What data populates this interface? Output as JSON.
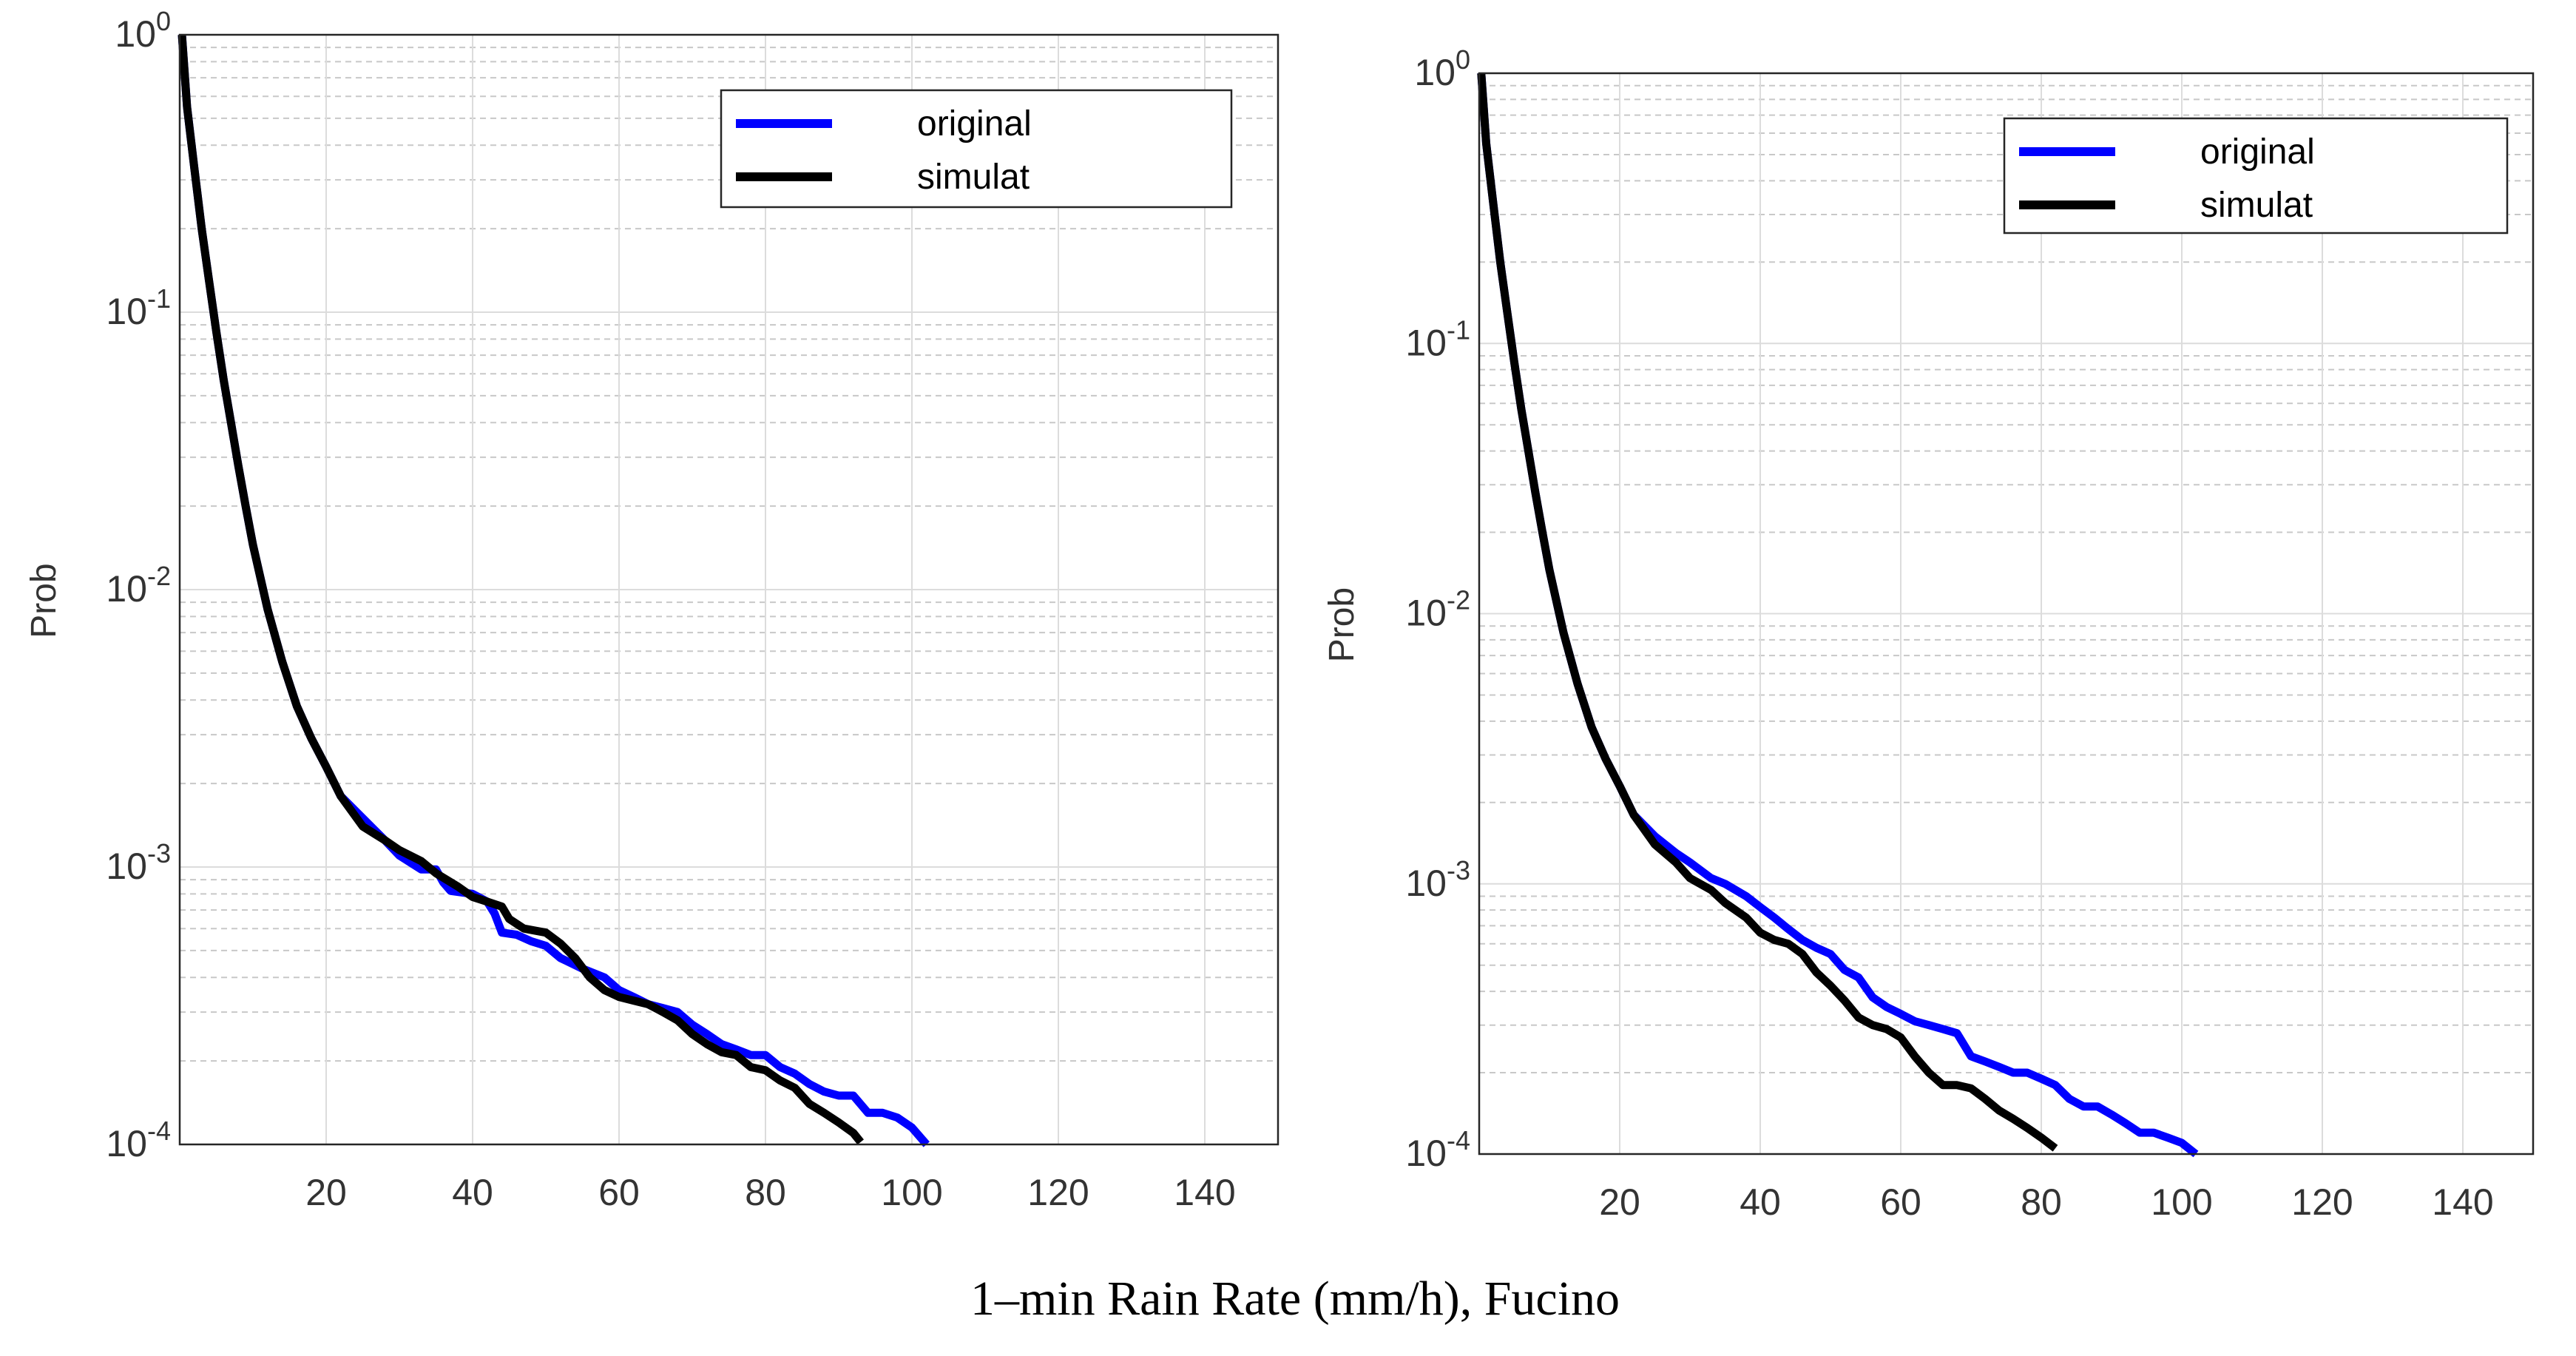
{
  "figure": {
    "caption": "1–min Rain Rate (mm/h), Fucino"
  },
  "chart_data": [
    {
      "type": "line",
      "yscale": "log",
      "ylabel": "Prob",
      "xlabel": "",
      "xlim": [
        0,
        150
      ],
      "ylim": [
        0.0001,
        1
      ],
      "xticks": [
        20,
        40,
        60,
        80,
        100,
        120,
        140
      ],
      "yticks": [
        {
          "value": 1,
          "base": "10",
          "exp": "0"
        },
        {
          "value": 0.1,
          "base": "10",
          "exp": "-1"
        },
        {
          "value": 0.01,
          "base": "10",
          "exp": "-2"
        },
        {
          "value": 0.001,
          "base": "10",
          "exp": "-3"
        },
        {
          "value": 0.0001,
          "base": "10",
          "exp": "-4"
        }
      ],
      "grid": true,
      "legend_position": "top-right",
      "series": [
        {
          "name": "original",
          "color": "#0000ff",
          "x": [
            0.3,
            1,
            2,
            3,
            4,
            5,
            6,
            7,
            8,
            9,
            10,
            12,
            14,
            16,
            18,
            20,
            22,
            25,
            28,
            30,
            33,
            35,
            36,
            37,
            40,
            42,
            43,
            44,
            46,
            48,
            50,
            52,
            55,
            58,
            60,
            62,
            64,
            66,
            68,
            70,
            72,
            74,
            76,
            78,
            80,
            82,
            84,
            86,
            88,
            90,
            92,
            94,
            96,
            98,
            100,
            102
          ],
          "y": [
            1.0,
            0.55,
            0.33,
            0.2,
            0.13,
            0.085,
            0.057,
            0.04,
            0.028,
            0.02,
            0.0145,
            0.0085,
            0.0055,
            0.0038,
            0.0029,
            0.0023,
            0.0018,
            0.0015,
            0.00125,
            0.0011,
            0.00098,
            0.00098,
            0.00088,
            0.00082,
            0.0008,
            0.00075,
            0.00068,
            0.00058,
            0.00057,
            0.00054,
            0.00052,
            0.00047,
            0.00043,
            0.0004,
            0.00036,
            0.00034,
            0.00032,
            0.00031,
            0.0003,
            0.00027,
            0.00025,
            0.00023,
            0.00022,
            0.00021,
            0.00021,
            0.00019,
            0.00018,
            0.000165,
            0.000155,
            0.00015,
            0.00015,
            0.00013,
            0.00013,
            0.000125,
            0.000115,
            0.0001
          ]
        },
        {
          "name": "simulat",
          "color": "#000000",
          "x": [
            0.3,
            1,
            2,
            3,
            4,
            5,
            6,
            7,
            8,
            9,
            10,
            12,
            14,
            16,
            18,
            20,
            22,
            25,
            28,
            30,
            33,
            35,
            38,
            40,
            42,
            44,
            45,
            47,
            50,
            52,
            54,
            56,
            58,
            60,
            62,
            64,
            66,
            68,
            70,
            72,
            74,
            76,
            78,
            80,
            82,
            84,
            86,
            88,
            90,
            92,
            93
          ],
          "y": [
            1.0,
            0.55,
            0.33,
            0.2,
            0.13,
            0.085,
            0.057,
            0.04,
            0.028,
            0.02,
            0.0145,
            0.0085,
            0.0055,
            0.0038,
            0.0029,
            0.0023,
            0.0018,
            0.0014,
            0.00125,
            0.00115,
            0.00105,
            0.00095,
            0.00085,
            0.00078,
            0.00075,
            0.00072,
            0.00065,
            0.0006,
            0.00058,
            0.00053,
            0.00047,
            0.0004,
            0.00036,
            0.00034,
            0.00033,
            0.00032,
            0.0003,
            0.00028,
            0.00025,
            0.00023,
            0.000215,
            0.00021,
            0.00019,
            0.000185,
            0.00017,
            0.00016,
            0.00014,
            0.00013,
            0.00012,
            0.00011,
            0.000102
          ]
        }
      ]
    },
    {
      "type": "line",
      "yscale": "log",
      "ylabel": "Prob",
      "xlabel": "",
      "xlim": [
        0,
        150
      ],
      "ylim": [
        0.0001,
        1
      ],
      "xticks": [
        20,
        40,
        60,
        80,
        100,
        120,
        140
      ],
      "yticks": [
        {
          "value": 1,
          "base": "10",
          "exp": "0"
        },
        {
          "value": 0.1,
          "base": "10",
          "exp": "-1"
        },
        {
          "value": 0.01,
          "base": "10",
          "exp": "-2"
        },
        {
          "value": 0.001,
          "base": "10",
          "exp": "-3"
        },
        {
          "value": 0.0001,
          "base": "10",
          "exp": "-4"
        }
      ],
      "grid": true,
      "legend_position": "top-right",
      "series": [
        {
          "name": "original",
          "color": "#0000ff",
          "x": [
            0.3,
            1,
            2,
            3,
            4,
            5,
            6,
            7,
            8,
            9,
            10,
            12,
            14,
            16,
            18,
            20,
            22,
            25,
            28,
            30,
            33,
            35,
            38,
            40,
            42,
            44,
            46,
            48,
            50,
            52,
            54,
            56,
            58,
            60,
            62,
            64,
            66,
            68,
            70,
            72,
            74,
            76,
            78,
            80,
            82,
            84,
            86,
            88,
            90,
            92,
            94,
            96,
            98,
            100,
            102
          ],
          "y": [
            1.0,
            0.55,
            0.33,
            0.2,
            0.13,
            0.085,
            0.057,
            0.04,
            0.028,
            0.02,
            0.0145,
            0.0085,
            0.0055,
            0.0038,
            0.0029,
            0.0023,
            0.0018,
            0.0015,
            0.0013,
            0.0012,
            0.00105,
            0.001,
            0.0009,
            0.00082,
            0.00075,
            0.00068,
            0.00062,
            0.00058,
            0.00055,
            0.00048,
            0.00045,
            0.00038,
            0.00035,
            0.00033,
            0.00031,
            0.0003,
            0.00029,
            0.00028,
            0.00023,
            0.00022,
            0.00021,
            0.0002,
            0.0002,
            0.00019,
            0.00018,
            0.00016,
            0.00015,
            0.00015,
            0.00014,
            0.00013,
            0.00012,
            0.00012,
            0.000115,
            0.00011,
            0.0001
          ]
        },
        {
          "name": "simulat",
          "color": "#000000",
          "x": [
            0.3,
            1,
            2,
            3,
            4,
            5,
            6,
            7,
            8,
            9,
            10,
            12,
            14,
            16,
            18,
            20,
            22,
            25,
            28,
            30,
            33,
            35,
            38,
            40,
            42,
            44,
            46,
            48,
            50,
            52,
            54,
            56,
            58,
            60,
            62,
            64,
            66,
            68,
            70,
            72,
            74,
            76,
            78,
            80,
            82
          ],
          "y": [
            1.0,
            0.55,
            0.33,
            0.2,
            0.13,
            0.085,
            0.057,
            0.04,
            0.028,
            0.02,
            0.0145,
            0.0085,
            0.0055,
            0.0038,
            0.0029,
            0.0023,
            0.0018,
            0.0014,
            0.0012,
            0.00105,
            0.00095,
            0.00085,
            0.00075,
            0.00066,
            0.00062,
            0.0006,
            0.00055,
            0.00047,
            0.00042,
            0.00037,
            0.00032,
            0.0003,
            0.00029,
            0.00027,
            0.00023,
            0.0002,
            0.00018,
            0.00018,
            0.000175,
            0.00016,
            0.000145,
            0.000135,
            0.000125,
            0.000115,
            0.000105
          ]
        }
      ]
    }
  ]
}
